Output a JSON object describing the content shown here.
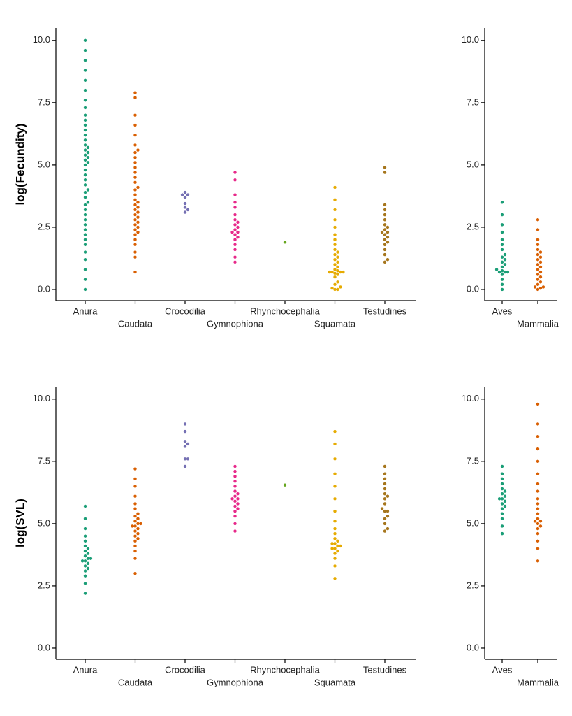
{
  "chart_data": [
    {
      "type": "beeswarm",
      "ylabel": "log(Fecundity)",
      "categories": [
        "Anura",
        "Caudata",
        "Crocodilia",
        "Gymnophiona",
        "Rhynchocephalia",
        "Squamata",
        "Testudines"
      ],
      "colors": [
        "#1b9e77",
        "#d95f02",
        "#7570b3",
        "#e7298a",
        "#66a61e",
        "#e6ab02",
        "#a6761d"
      ],
      "values": [
        [
          0,
          0.4,
          0.8,
          1.2,
          1.5,
          1.8,
          2.0,
          2.2,
          2.4,
          2.6,
          2.8,
          3.0,
          3.2,
          3.4,
          3.5,
          3.7,
          3.9,
          4.0,
          4.2,
          4.4,
          4.6,
          4.8,
          5.0,
          5.1,
          5.2,
          5.3,
          5.4,
          5.5,
          5.6,
          5.7,
          5.8,
          6.0,
          6.2,
          6.4,
          6.6,
          6.8,
          7.0,
          7.3,
          7.6,
          8.0,
          8.4,
          8.8,
          9.2,
          9.6,
          10.0
        ],
        [
          0.7,
          1.3,
          1.5,
          1.8,
          2.0,
          2.2,
          2.3,
          2.4,
          2.5,
          2.6,
          2.7,
          2.8,
          2.9,
          3.0,
          3.1,
          3.2,
          3.3,
          3.4,
          3.5,
          3.6,
          3.8,
          4.0,
          4.1,
          4.3,
          4.5,
          4.7,
          4.9,
          5.1,
          5.3,
          5.5,
          5.6,
          5.8,
          6.2,
          6.6,
          7.0,
          7.7,
          7.9
        ],
        [
          3.45,
          3.3,
          3.8,
          3.1,
          3.9,
          3.2,
          3.8,
          3.7
        ],
        [
          1.1,
          1.3,
          1.6,
          1.8,
          2.0,
          2.1,
          2.2,
          2.3,
          2.3,
          2.4,
          2.5,
          2.6,
          2.7,
          2.8,
          3.0,
          3.3,
          3.5,
          3.8,
          4.4,
          4.7
        ],
        [
          1.9
        ],
        [
          0,
          0,
          0.05,
          0.1,
          0.2,
          0.3,
          0.5,
          0.6,
          0.65,
          0.7,
          0.7,
          0.7,
          0.7,
          0.75,
          0.8,
          0.9,
          1.0,
          1.1,
          1.2,
          1.3,
          1.4,
          1.5,
          1.6,
          1.8,
          2.0,
          2.2,
          2.5,
          2.8,
          3.2,
          3.6,
          4.1
        ],
        [
          1.1,
          1.2,
          1.4,
          1.6,
          1.8,
          1.9,
          2.0,
          2.1,
          2.2,
          2.3,
          2.3,
          2.4,
          2.5,
          2.6,
          2.8,
          3.0,
          3.2,
          3.4,
          4.7,
          4.9
        ]
      ],
      "ylim": [
        -0.45,
        10.5
      ],
      "yticks": [
        {
          "value": 0,
          "label": "0.0"
        },
        2.5,
        {
          "value": 5,
          "label": "5.0"
        },
        7.5,
        {
          "value": 10,
          "label": "10.0"
        }
      ]
    },
    {
      "type": "beeswarm",
      "categories": [
        "Aves",
        "Mammalia"
      ],
      "colors": [
        "#1b9e77",
        "#d95f02"
      ],
      "values": [
        [
          0,
          0.2,
          0.4,
          0.6,
          0.7,
          0.7,
          0.7,
          0.75,
          0.8,
          0.9,
          1.0,
          1.1,
          1.2,
          1.3,
          1.4,
          1.6,
          1.8,
          2.0,
          2.3,
          2.6,
          3.0,
          3.5
        ],
        [
          0,
          0.05,
          0.1,
          0.1,
          0.2,
          0.3,
          0.4,
          0.5,
          0.6,
          0.7,
          0.8,
          0.9,
          1.0,
          1.1,
          1.2,
          1.3,
          1.4,
          1.5,
          1.6,
          1.8,
          2.0,
          2.4,
          2.8
        ]
      ],
      "ylim": [
        -0.45,
        10.5
      ],
      "yticks": [
        {
          "value": 0,
          "label": "0.0"
        },
        2.5,
        {
          "value": 5,
          "label": "5.0"
        },
        7.5,
        {
          "value": 10,
          "label": "10.0"
        }
      ]
    },
    {
      "type": "beeswarm",
      "ylabel": "log(SVL)",
      "categories": [
        "Anura",
        "Caudata",
        "Crocodilia",
        "Gymnophiona",
        "Rhynchocephalia",
        "Squamata",
        "Testudines"
      ],
      "colors": [
        "#1b9e77",
        "#d95f02",
        "#7570b3",
        "#e7298a",
        "#66a61e",
        "#e6ab02",
        "#a6761d"
      ],
      "values": [
        [
          2.2,
          2.6,
          2.9,
          3.1,
          3.2,
          3.3,
          3.4,
          3.5,
          3.5,
          3.6,
          3.6,
          3.7,
          3.8,
          3.9,
          4.0,
          4.1,
          4.3,
          4.5,
          4.8,
          5.2,
          5.7
        ],
        [
          3.0,
          3.6,
          3.9,
          4.1,
          4.3,
          4.4,
          4.5,
          4.6,
          4.7,
          4.8,
          4.9,
          4.9,
          5.0,
          5.0,
          5.1,
          5.2,
          5.3,
          5.4,
          5.6,
          5.8,
          6.1,
          6.5,
          6.8,
          7.2
        ],
        [
          7.3,
          7.6,
          7.6,
          8.1,
          8.2,
          8.3,
          8.7,
          9.0
        ],
        [
          4.7,
          5.0,
          5.3,
          5.5,
          5.6,
          5.7,
          5.8,
          5.9,
          6.0,
          6.0,
          6.1,
          6.2,
          6.3,
          6.5,
          6.7,
          6.9,
          7.1,
          7.3
        ],
        [
          6.55
        ],
        [
          2.8,
          3.3,
          3.6,
          3.8,
          3.9,
          4.0,
          4.0,
          4.1,
          4.1,
          4.2,
          4.2,
          4.3,
          4.4,
          4.6,
          4.8,
          5.1,
          5.5,
          6.0,
          6.5,
          7.0,
          7.6,
          8.2,
          8.7
        ],
        [
          4.7,
          4.8,
          5.0,
          5.2,
          5.3,
          5.5,
          5.5,
          5.6,
          5.8,
          6.0,
          6.1,
          6.2,
          6.4,
          6.6,
          6.8,
          7.0,
          7.3
        ]
      ],
      "ylim": [
        -0.45,
        10.5
      ],
      "yticks": [
        {
          "value": 0,
          "label": "0.0"
        },
        2.5,
        {
          "value": 5,
          "label": "5.0"
        },
        7.5,
        {
          "value": 10,
          "label": "10.0"
        }
      ]
    },
    {
      "type": "beeswarm",
      "categories": [
        "Aves",
        "Mammalia"
      ],
      "colors": [
        "#1b9e77",
        "#d95f02"
      ],
      "values": [
        [
          4.6,
          4.9,
          5.2,
          5.4,
          5.6,
          5.7,
          5.8,
          5.9,
          6.0,
          6.0,
          6.1,
          6.2,
          6.3,
          6.4,
          6.6,
          6.8,
          7.0,
          7.3
        ],
        [
          3.5,
          4.0,
          4.3,
          4.6,
          4.8,
          4.9,
          5.0,
          5.1,
          5.1,
          5.2,
          5.4,
          5.6,
          5.8,
          6.0,
          6.3,
          6.6,
          7.0,
          7.5,
          8.0,
          8.5,
          9.0,
          9.8
        ]
      ],
      "ylim": [
        -0.45,
        10.5
      ],
      "yticks": [
        {
          "value": 0,
          "label": "0.0"
        },
        2.5,
        {
          "value": 5,
          "label": "5.0"
        },
        7.5,
        {
          "value": 10,
          "label": "10.0"
        }
      ]
    }
  ]
}
